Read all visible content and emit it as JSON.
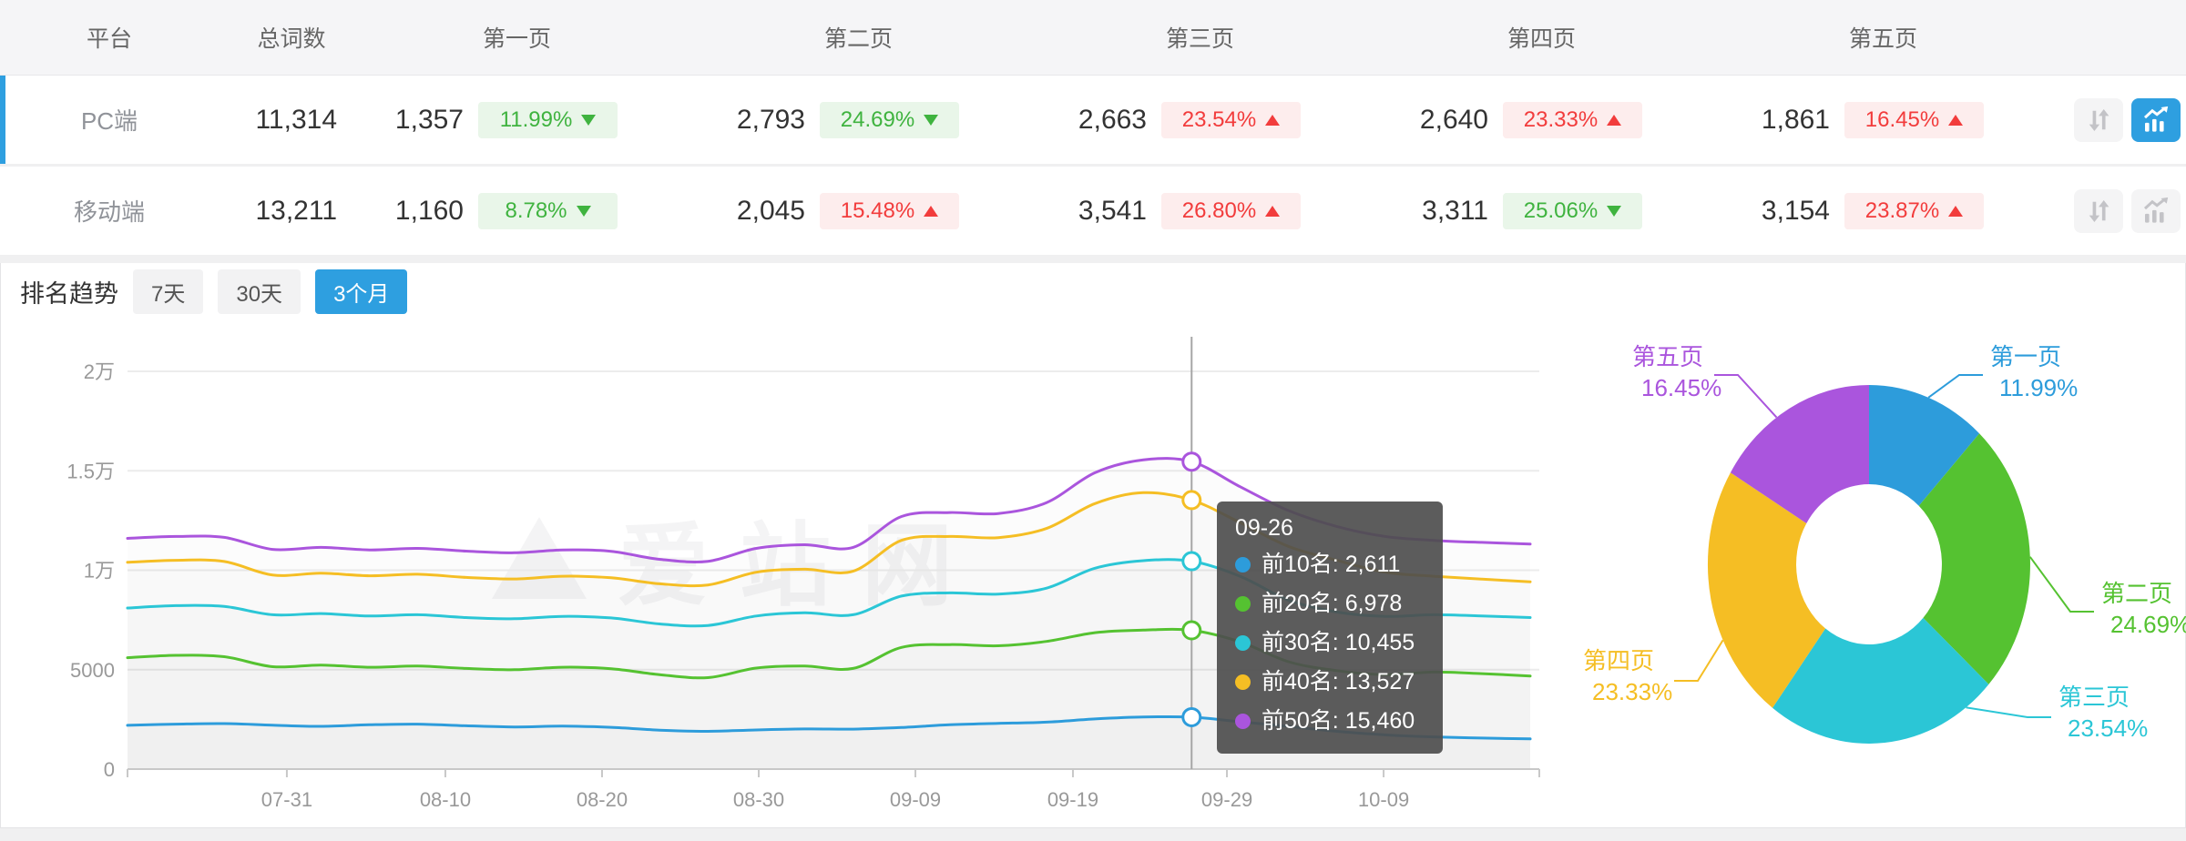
{
  "table": {
    "headers": [
      "平台",
      "总词数",
      "第一页",
      "第二页",
      "第三页",
      "第四页",
      "第五页"
    ],
    "rows": [
      {
        "platform": "PC端",
        "total": "11,314",
        "selected": true,
        "pages": [
          {
            "count": "1,357",
            "pct": "11.99%",
            "trend": "down",
            "tone": "green"
          },
          {
            "count": "2,793",
            "pct": "24.69%",
            "trend": "down",
            "tone": "green"
          },
          {
            "count": "2,663",
            "pct": "23.54%",
            "trend": "up",
            "tone": "red"
          },
          {
            "count": "2,640",
            "pct": "23.33%",
            "trend": "up",
            "tone": "red"
          },
          {
            "count": "1,861",
            "pct": "16.45%",
            "trend": "up",
            "tone": "red"
          }
        ]
      },
      {
        "platform": "移动端",
        "total": "13,211",
        "selected": false,
        "pages": [
          {
            "count": "1,160",
            "pct": "8.78%",
            "trend": "down",
            "tone": "green"
          },
          {
            "count": "2,045",
            "pct": "15.48%",
            "trend": "up",
            "tone": "red"
          },
          {
            "count": "3,541",
            "pct": "26.80%",
            "trend": "up",
            "tone": "red"
          },
          {
            "count": "3,311",
            "pct": "25.06%",
            "trend": "down",
            "tone": "green"
          },
          {
            "count": "3,154",
            "pct": "23.87%",
            "trend": "up",
            "tone": "red"
          }
        ]
      }
    ]
  },
  "trend": {
    "title": "排名趋势",
    "ranges": [
      {
        "label": "7天",
        "active": false
      },
      {
        "label": "30天",
        "active": false
      },
      {
        "label": "3个月",
        "active": true
      }
    ]
  },
  "tooltip": {
    "date": "09-26",
    "items": [
      {
        "label": "前10名",
        "value": "2,611",
        "color": "#2D9CDB"
      },
      {
        "label": "前20名",
        "value": "6,978",
        "color": "#55C231"
      },
      {
        "label": "前30名",
        "value": "10,455",
        "color": "#2BC6D6"
      },
      {
        "label": "前40名",
        "value": "13,527",
        "color": "#F5BE24"
      },
      {
        "label": "前50名",
        "value": "15,460",
        "color": "#AA55DD"
      }
    ]
  },
  "watermark": "爱站网",
  "colors": {
    "accent": "#2E9FE0",
    "down_green": "#3fb33f",
    "up_red": "#f23c3c"
  },
  "chart_data": [
    {
      "type": "line",
      "title": "排名趋势 (3个月)",
      "legend_position": "none",
      "grid": true,
      "y_axis": {
        "labels": [
          "0",
          "5000",
          "1万",
          "1.5万",
          "2万"
        ],
        "values": [
          0,
          5000,
          10000,
          15000,
          20000
        ],
        "max": 20000
      },
      "x_ticks": [
        {
          "label": "07-31",
          "f": 0.1136
        },
        {
          "label": "08-10",
          "f": 0.2266
        },
        {
          "label": "08-20",
          "f": 0.3383
        },
        {
          "label": "08-30",
          "f": 0.45
        },
        {
          "label": "09-09",
          "f": 0.5617
        },
        {
          "label": "09-19",
          "f": 0.674
        },
        {
          "label": "09-29",
          "f": 0.7838
        },
        {
          "label": "10-09",
          "f": 0.8955
        }
      ],
      "hover_index": 22,
      "hover_date": "09-26",
      "series": [
        {
          "name": "前10名",
          "color": "#2D9CDB",
          "hover_value": 2611,
          "values": [
            2200,
            2260,
            2290,
            2210,
            2150,
            2230,
            2260,
            2180,
            2120,
            2160,
            2100,
            1960,
            1900,
            1970,
            2020,
            2010,
            2090,
            2230,
            2300,
            2360,
            2520,
            2620,
            2611,
            2380,
            2150,
            1900,
            1720,
            1620,
            1560,
            1520
          ]
        },
        {
          "name": "前20名",
          "color": "#55C231",
          "hover_value": 6978,
          "values": [
            5600,
            5720,
            5650,
            5150,
            5230,
            5120,
            5180,
            5060,
            5000,
            5120,
            5050,
            4750,
            4600,
            5080,
            5180,
            5060,
            6120,
            6260,
            6200,
            6420,
            6860,
            6990,
            6978,
            6400,
            5400,
            4950,
            4750,
            4880,
            4800,
            4680
          ]
        },
        {
          "name": "前30名",
          "color": "#2BC6D6",
          "hover_value": 10455,
          "values": [
            8100,
            8220,
            8180,
            7760,
            7820,
            7700,
            7760,
            7620,
            7560,
            7680,
            7600,
            7300,
            7220,
            7700,
            7860,
            7760,
            8700,
            8860,
            8800,
            9100,
            10100,
            10480,
            10455,
            9700,
            8500,
            7900,
            7680,
            7760,
            7700,
            7620
          ]
        },
        {
          "name": "前40名",
          "color": "#F5BE24",
          "hover_value": 13527,
          "values": [
            10400,
            10500,
            10440,
            9760,
            9850,
            9720,
            9800,
            9640,
            9560,
            9700,
            9620,
            9320,
            9260,
            9900,
            10050,
            9950,
            11500,
            11700,
            11640,
            12100,
            13350,
            13900,
            13527,
            12400,
            11200,
            10500,
            9900,
            9700,
            9550,
            9420
          ]
        },
        {
          "name": "前50名",
          "color": "#AA55DD",
          "hover_value": 15460,
          "values": [
            11600,
            11700,
            11650,
            11050,
            11150,
            11020,
            11100,
            10960,
            10880,
            11020,
            10950,
            10550,
            10450,
            11100,
            11280,
            11150,
            12700,
            12900,
            12850,
            13400,
            14900,
            15550,
            15460,
            14200,
            13000,
            12200,
            11700,
            11500,
            11400,
            11320
          ]
        }
      ]
    },
    {
      "type": "donut",
      "items": [
        {
          "label": "第一页",
          "pct": 11.99,
          "color": "#2D9CDB"
        },
        {
          "label": "第二页",
          "pct": 24.69,
          "color": "#55C231"
        },
        {
          "label": "第三页",
          "pct": 23.54,
          "color": "#2BC6D6"
        },
        {
          "label": "第四页",
          "pct": 23.33,
          "color": "#F5BE24"
        },
        {
          "label": "第五页",
          "pct": 16.45,
          "color": "#AA55DD"
        }
      ]
    }
  ]
}
